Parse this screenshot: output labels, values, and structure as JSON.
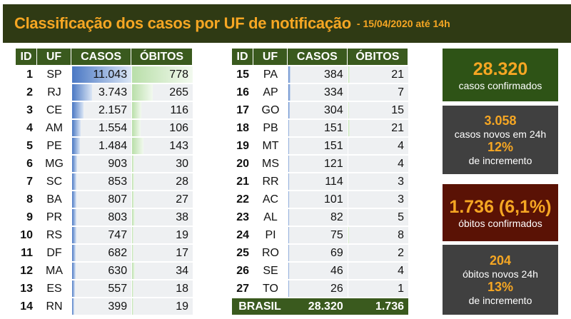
{
  "header": {
    "title": "Classificação dos casos por UF de notificação",
    "subtitle": "- 15/04/2020 até 14h"
  },
  "columns": [
    "ID",
    "UF",
    "CASOS",
    "ÓBITOS"
  ],
  "left_rows": [
    [
      "1",
      "SP",
      "11.043",
      "778"
    ],
    [
      "2",
      "RJ",
      "3.743",
      "265"
    ],
    [
      "3",
      "CE",
      "2.157",
      "116"
    ],
    [
      "4",
      "AM",
      "1.554",
      "106"
    ],
    [
      "5",
      "PE",
      "1.484",
      "143"
    ],
    [
      "6",
      "MG",
      "903",
      "30"
    ],
    [
      "7",
      "SC",
      "853",
      "28"
    ],
    [
      "8",
      "BA",
      "807",
      "27"
    ],
    [
      "9",
      "PR",
      "803",
      "38"
    ],
    [
      "10",
      "RS",
      "747",
      "19"
    ],
    [
      "11",
      "DF",
      "682",
      "17"
    ],
    [
      "12",
      "MA",
      "630",
      "34"
    ],
    [
      "13",
      "ES",
      "557",
      "18"
    ],
    [
      "14",
      "RN",
      "399",
      "19"
    ]
  ],
  "right_rows": [
    [
      "15",
      "PA",
      "384",
      "21"
    ],
    [
      "16",
      "AP",
      "334",
      "7"
    ],
    [
      "17",
      "GO",
      "304",
      "15"
    ],
    [
      "18",
      "PB",
      "151",
      "21"
    ],
    [
      "19",
      "MT",
      "151",
      "4"
    ],
    [
      "20",
      "MS",
      "121",
      "4"
    ],
    [
      "21",
      "RR",
      "114",
      "3"
    ],
    [
      "22",
      "AC",
      "101",
      "3"
    ],
    [
      "23",
      "AL",
      "82",
      "5"
    ],
    [
      "24",
      "PI",
      "75",
      "8"
    ],
    [
      "25",
      "RO",
      "69",
      "2"
    ],
    [
      "26",
      "SE",
      "46",
      "4"
    ],
    [
      "27",
      "TO",
      "26",
      "1"
    ]
  ],
  "total": {
    "label": "BRASIL",
    "casos": "28.320",
    "obitos": "1.736"
  },
  "boxes": {
    "confirmed": {
      "value": "28.320",
      "label": "casos confirmados",
      "color": "#2e5316"
    },
    "new_cases": {
      "value": "3.058",
      "label": "casos novos em 24h",
      "pct": "12%",
      "pct_label": "de incremento",
      "color": "#404040"
    },
    "deaths": {
      "value": "1.736 (6,1%)",
      "label": "óbitos confirmados",
      "color": "#5a1205"
    },
    "new_deaths": {
      "value": "204",
      "label": "óbitos novos 24h",
      "pct": "13%",
      "pct_label": "de incremento",
      "color": "#404040"
    }
  },
  "colors": {
    "header_bg": "#2f3a14",
    "accent": "#f5a623",
    "table_header": "#3a5a1e",
    "cases_bar": "#4a78c4",
    "deaths_bar": "#b9dfa9"
  }
}
